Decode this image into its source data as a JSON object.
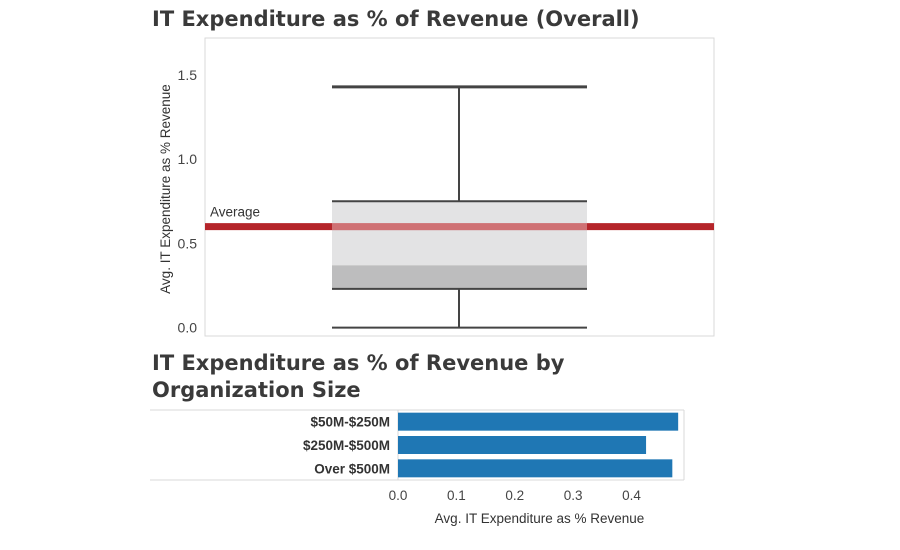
{
  "chart_data": [
    {
      "type": "box",
      "title": "IT Expenditure as % of Revenue (Overall)",
      "ylabel": "Avg. IT Expenditure as % Revenue",
      "ylim": [
        -0.05,
        1.72
      ],
      "yticks": [
        0.0,
        0.5,
        1.0,
        1.5
      ],
      "ytick_labels": [
        "0.0",
        "0.5",
        "1.0",
        "1.5"
      ],
      "box": {
        "whisker_low": 0.0,
        "q1": 0.23,
        "median": 0.37,
        "q3": 0.75,
        "whisker_high": 1.43
      },
      "reference_line": {
        "label": "Average",
        "value": 0.6,
        "color": "#b5252a"
      },
      "colors": {
        "upper_box": "#e3e3e4",
        "lower_box": "#bdbdbe",
        "whisker": "#444444"
      }
    },
    {
      "type": "bar",
      "orientation": "horizontal",
      "title": "IT Expenditure as % of Revenue by Organization Size",
      "categories": [
        "$50M-$250M",
        "$250M-$500M",
        "Over $500M"
      ],
      "values": [
        0.48,
        0.425,
        0.47
      ],
      "xlabel": "Avg. IT Expenditure as % Revenue",
      "xlim": [
        0,
        0.49
      ],
      "xticks": [
        0.0,
        0.1,
        0.2,
        0.3,
        0.4
      ],
      "xtick_labels": [
        "0.0",
        "0.1",
        "0.2",
        "0.3",
        "0.4"
      ],
      "bar_color": "#1f77b4"
    }
  ]
}
